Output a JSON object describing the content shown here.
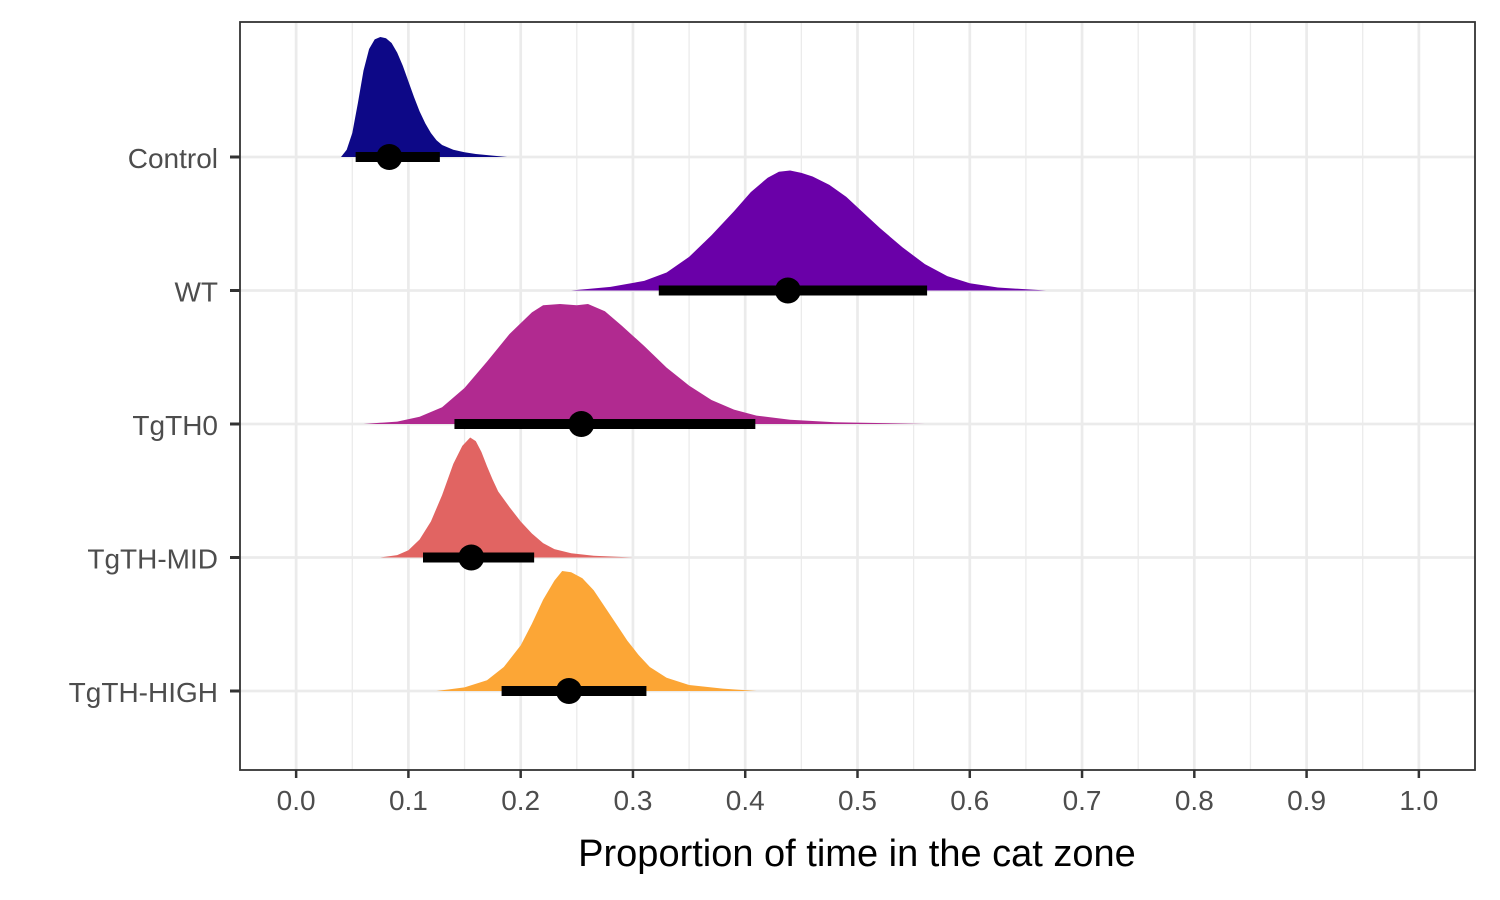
{
  "chart_data": {
    "type": "area",
    "subtype": "halfeye-density",
    "title": "",
    "xlabel": "Proportion of time in the cat zone",
    "ylabel": "",
    "xlim": [
      -0.05,
      1.05
    ],
    "x_ticks": [
      "0.0",
      "0.1",
      "0.2",
      "0.3",
      "0.4",
      "0.5",
      "0.6",
      "0.7",
      "0.8",
      "0.9",
      "1.0"
    ],
    "grid": true,
    "legend": "none",
    "categories": [
      "Control",
      "WT",
      "TgTH0",
      "TgTH-MID",
      "TgTH-HIGH"
    ],
    "series": [
      {
        "name": "Control",
        "color": "#0D0887",
        "point": 0.083,
        "interval": [
          0.053,
          0.128
        ],
        "density": [
          [
            0.04,
            0
          ],
          [
            0.045,
            0.06
          ],
          [
            0.05,
            0.2
          ],
          [
            0.055,
            0.45
          ],
          [
            0.06,
            0.72
          ],
          [
            0.065,
            0.9
          ],
          [
            0.07,
            0.98
          ],
          [
            0.075,
            1.0
          ],
          [
            0.08,
            0.99
          ],
          [
            0.085,
            0.95
          ],
          [
            0.09,
            0.87
          ],
          [
            0.095,
            0.76
          ],
          [
            0.1,
            0.63
          ],
          [
            0.105,
            0.5
          ],
          [
            0.11,
            0.38
          ],
          [
            0.115,
            0.28
          ],
          [
            0.12,
            0.2
          ],
          [
            0.125,
            0.14
          ],
          [
            0.13,
            0.1
          ],
          [
            0.14,
            0.06
          ],
          [
            0.15,
            0.04
          ],
          [
            0.16,
            0.025
          ],
          [
            0.175,
            0.012
          ],
          [
            0.188,
            0
          ]
        ]
      },
      {
        "name": "WT",
        "color": "#6A00A8",
        "point": 0.438,
        "interval": [
          0.323,
          0.562
        ],
        "density": [
          [
            0.245,
            0
          ],
          [
            0.28,
            0.03
          ],
          [
            0.31,
            0.08
          ],
          [
            0.33,
            0.15
          ],
          [
            0.35,
            0.28
          ],
          [
            0.37,
            0.46
          ],
          [
            0.39,
            0.66
          ],
          [
            0.405,
            0.82
          ],
          [
            0.42,
            0.94
          ],
          [
            0.43,
            0.99
          ],
          [
            0.44,
            1.0
          ],
          [
            0.45,
            0.98
          ],
          [
            0.46,
            0.95
          ],
          [
            0.475,
            0.88
          ],
          [
            0.49,
            0.78
          ],
          [
            0.505,
            0.65
          ],
          [
            0.52,
            0.52
          ],
          [
            0.54,
            0.36
          ],
          [
            0.56,
            0.22
          ],
          [
            0.58,
            0.12
          ],
          [
            0.6,
            0.06
          ],
          [
            0.625,
            0.025
          ],
          [
            0.668,
            0
          ]
        ]
      },
      {
        "name": "TgTH0",
        "color": "#B12A90",
        "point": 0.254,
        "interval": [
          0.141,
          0.409
        ],
        "density": [
          [
            0.06,
            0
          ],
          [
            0.09,
            0.02
          ],
          [
            0.11,
            0.06
          ],
          [
            0.13,
            0.14
          ],
          [
            0.15,
            0.3
          ],
          [
            0.17,
            0.52
          ],
          [
            0.19,
            0.75
          ],
          [
            0.21,
            0.93
          ],
          [
            0.22,
            0.99
          ],
          [
            0.235,
            1.0
          ],
          [
            0.25,
            0.99
          ],
          [
            0.26,
            1.0
          ],
          [
            0.275,
            0.94
          ],
          [
            0.29,
            0.82
          ],
          [
            0.31,
            0.65
          ],
          [
            0.33,
            0.47
          ],
          [
            0.35,
            0.32
          ],
          [
            0.37,
            0.2
          ],
          [
            0.39,
            0.12
          ],
          [
            0.41,
            0.07
          ],
          [
            0.44,
            0.035
          ],
          [
            0.48,
            0.015
          ],
          [
            0.56,
            0
          ]
        ]
      },
      {
        "name": "TgTH-MID",
        "color": "#E16462",
        "point": 0.156,
        "interval": [
          0.113,
          0.212
        ],
        "density": [
          [
            0.075,
            0
          ],
          [
            0.09,
            0.02
          ],
          [
            0.1,
            0.06
          ],
          [
            0.11,
            0.15
          ],
          [
            0.12,
            0.3
          ],
          [
            0.13,
            0.52
          ],
          [
            0.14,
            0.78
          ],
          [
            0.148,
            0.93
          ],
          [
            0.155,
            1.0
          ],
          [
            0.16,
            0.97
          ],
          [
            0.165,
            0.88
          ],
          [
            0.17,
            0.76
          ],
          [
            0.175,
            0.65
          ],
          [
            0.18,
            0.55
          ],
          [
            0.19,
            0.42
          ],
          [
            0.2,
            0.3
          ],
          [
            0.21,
            0.2
          ],
          [
            0.22,
            0.12
          ],
          [
            0.23,
            0.07
          ],
          [
            0.245,
            0.035
          ],
          [
            0.265,
            0.015
          ],
          [
            0.3,
            0
          ]
        ]
      },
      {
        "name": "TgTH-HIGH",
        "color": "#FCA636",
        "point": 0.243,
        "interval": [
          0.183,
          0.312
        ],
        "density": [
          [
            0.125,
            0
          ],
          [
            0.15,
            0.03
          ],
          [
            0.17,
            0.09
          ],
          [
            0.185,
            0.2
          ],
          [
            0.2,
            0.38
          ],
          [
            0.21,
            0.56
          ],
          [
            0.22,
            0.76
          ],
          [
            0.23,
            0.92
          ],
          [
            0.237,
            1.0
          ],
          [
            0.245,
            0.99
          ],
          [
            0.255,
            0.94
          ],
          [
            0.265,
            0.84
          ],
          [
            0.275,
            0.7
          ],
          [
            0.285,
            0.56
          ],
          [
            0.295,
            0.42
          ],
          [
            0.305,
            0.3
          ],
          [
            0.315,
            0.2
          ],
          [
            0.33,
            0.11
          ],
          [
            0.35,
            0.05
          ],
          [
            0.38,
            0.02
          ],
          [
            0.41,
            0
          ]
        ]
      }
    ]
  }
}
